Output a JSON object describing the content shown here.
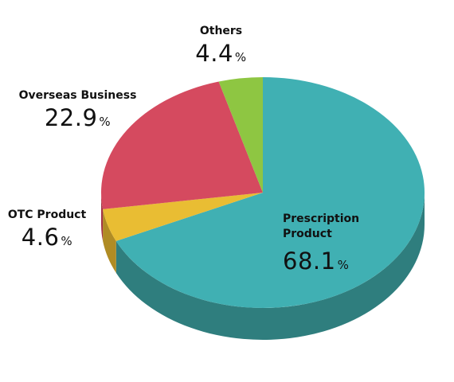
{
  "chart_data": {
    "type": "pie",
    "categories": [
      "Prescription Product",
      "OTC Product",
      "Overseas Business",
      "Others"
    ],
    "values": [
      68.1,
      4.6,
      22.9,
      4.4
    ],
    "unit": "%",
    "colors": [
      "#40b0b3",
      "#e9bd33",
      "#d54a5f",
      "#8ec642"
    ],
    "side_colors": [
      "#2f7e7e",
      "#b08c24",
      "#a33545",
      "#6a9630"
    ]
  }
}
